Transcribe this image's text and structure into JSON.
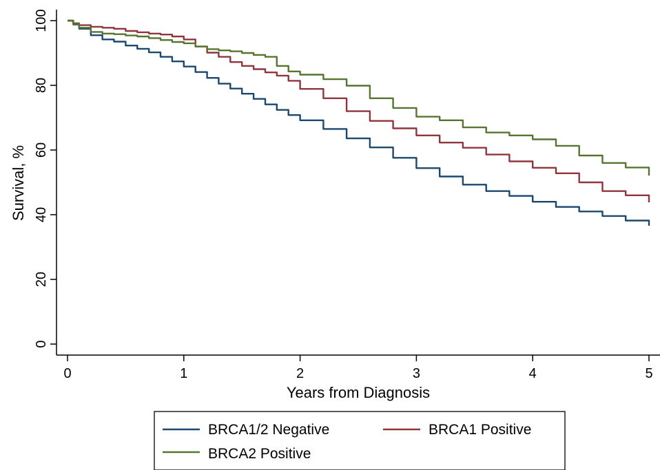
{
  "chart_data": {
    "type": "line",
    "xlabel": "Years from Diagnosis",
    "ylabel": "Survival, %",
    "xlim": [
      0,
      5
    ],
    "ylim": [
      0,
      100
    ],
    "xticks": [
      "0",
      "1",
      "2",
      "3",
      "4",
      "5"
    ],
    "yticks": [
      "0",
      "20",
      "40",
      "60",
      "80",
      "100"
    ],
    "grid": false,
    "legend_position": "bottom",
    "series": [
      {
        "name": "BRCA1/2 Negative",
        "color": "#1a476f",
        "x": [
          0,
          0.05,
          0.1,
          0.2,
          0.3,
          0.4,
          0.5,
          0.6,
          0.7,
          0.8,
          0.9,
          1.0,
          1.1,
          1.2,
          1.3,
          1.4,
          1.5,
          1.6,
          1.7,
          1.8,
          1.9,
          2.0,
          2.2,
          2.4,
          2.6,
          2.8,
          3.0,
          3.2,
          3.4,
          3.6,
          3.8,
          4.0,
          4.2,
          4.4,
          4.6,
          4.8,
          5.0
        ],
        "y": [
          100,
          98.8,
          97.5,
          95.5,
          94.2,
          93.5,
          92.3,
          91.3,
          90.2,
          88.8,
          87.4,
          85.8,
          84.1,
          82.3,
          80.5,
          79.0,
          77.4,
          75.8,
          74.1,
          72.4,
          70.8,
          69.2,
          66.5,
          63.6,
          60.8,
          57.6,
          54.4,
          51.8,
          49.3,
          47.3,
          45.8,
          44.0,
          42.4,
          41.0,
          39.6,
          38.2,
          36.6
        ]
      },
      {
        "name": "BRCA1 Positive",
        "color": "#90353b",
        "x": [
          0,
          0.05,
          0.1,
          0.2,
          0.3,
          0.4,
          0.5,
          0.6,
          0.7,
          0.8,
          0.9,
          1.0,
          1.1,
          1.2,
          1.3,
          1.4,
          1.5,
          1.6,
          1.7,
          1.8,
          1.9,
          2.0,
          2.2,
          2.4,
          2.6,
          2.8,
          3.0,
          3.2,
          3.4,
          3.6,
          3.8,
          4.0,
          4.2,
          4.4,
          4.6,
          4.8,
          5.0
        ],
        "y": [
          100,
          99.2,
          98.6,
          98.1,
          97.8,
          97.5,
          96.8,
          96.4,
          96.0,
          95.7,
          95.1,
          94.2,
          92.0,
          90.1,
          88.8,
          87.2,
          86.0,
          85.0,
          84.0,
          83.0,
          81.4,
          78.9,
          76.0,
          72.0,
          69.0,
          66.7,
          64.5,
          62.3,
          60.7,
          58.6,
          56.5,
          54.5,
          52.8,
          50.0,
          47.3,
          46.0,
          43.8
        ]
      },
      {
        "name": "BRCA2 Positive",
        "color": "#55752f",
        "x": [
          0,
          0.05,
          0.1,
          0.2,
          0.3,
          0.4,
          0.5,
          0.6,
          0.7,
          0.8,
          0.9,
          1.0,
          1.1,
          1.2,
          1.3,
          1.4,
          1.5,
          1.6,
          1.7,
          1.8,
          1.9,
          2.0,
          2.2,
          2.4,
          2.6,
          2.8,
          3.0,
          3.2,
          3.4,
          3.6,
          3.8,
          4.0,
          4.2,
          4.4,
          4.6,
          4.8,
          5.0
        ],
        "y": [
          100,
          99.0,
          97.8,
          96.5,
          96.0,
          95.8,
          95.4,
          95.1,
          94.6,
          94.0,
          93.4,
          93.0,
          92.0,
          91.2,
          90.8,
          90.5,
          90.0,
          89.4,
          88.8,
          86.0,
          84.3,
          83.3,
          81.9,
          79.9,
          76.0,
          73.0,
          70.3,
          69.2,
          67.0,
          65.4,
          64.5,
          63.3,
          61.3,
          58.3,
          56.0,
          54.6,
          52.1
        ]
      }
    ]
  }
}
